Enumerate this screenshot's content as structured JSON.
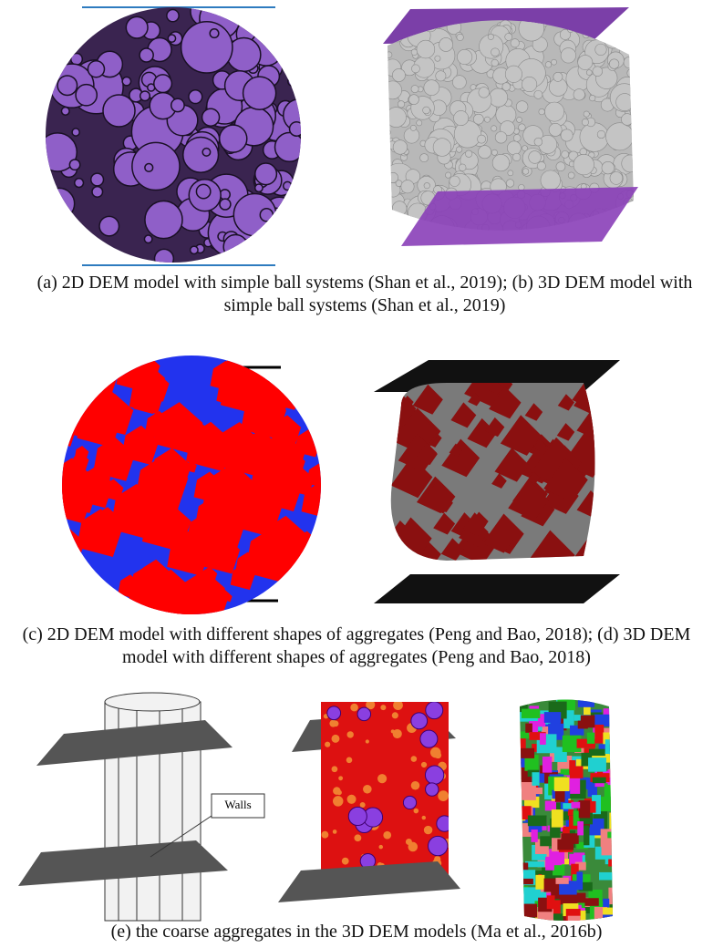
{
  "captions": [
    "(a)  2D DEM model with simple ball systems (Shan et al., 2019); (b) 3D DEM model with simple ball systems (Shan et al., 2019)",
    "(c) 2D DEM model with different shapes of aggregates (Peng and Bao, 2018); (d) 3D DEM model with different shapes of aggregates (Peng and Bao, 2018)",
    "(e) the coarse aggregates in the 3D DEM models (Ma et al., 2016b)"
  ],
  "labels": {
    "walls": "Walls"
  }
}
